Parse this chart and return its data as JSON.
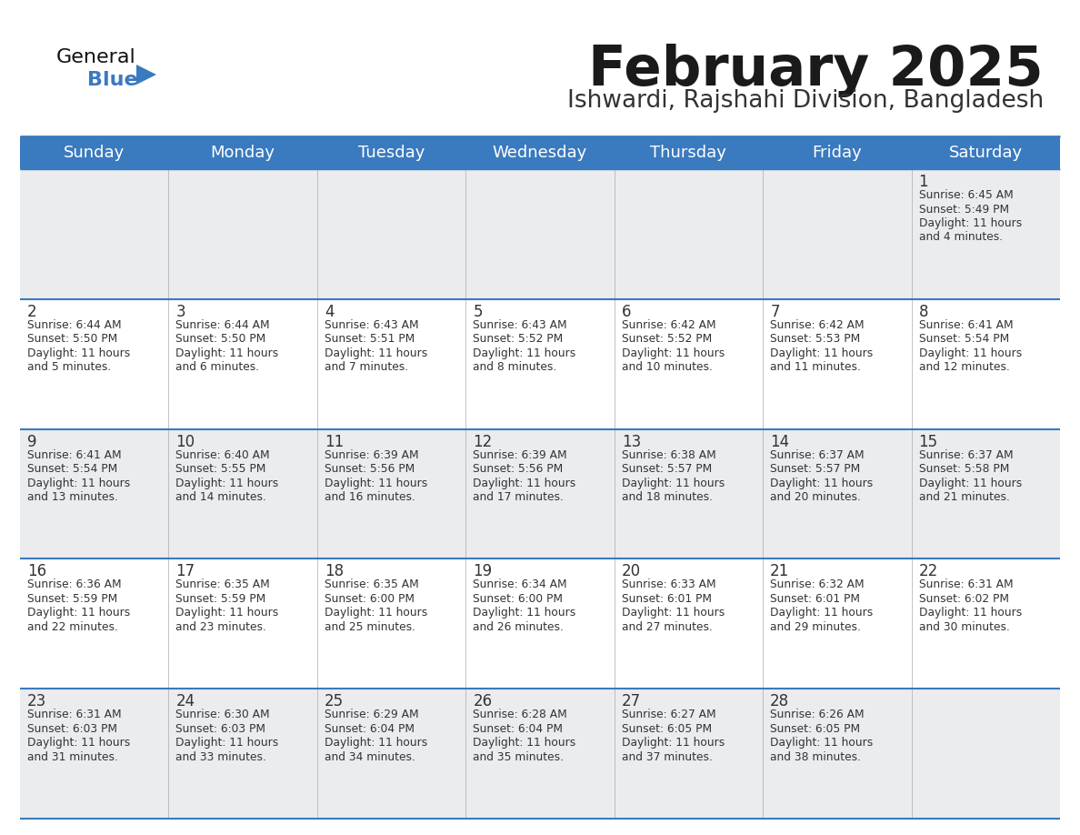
{
  "title": "February 2025",
  "subtitle": "Ishwardi, Rajshahi Division, Bangladesh",
  "header_bg_color": "#3a7abf",
  "header_text_color": "#ffffff",
  "bg_color": "#ffffff",
  "cell_bg_even": "#eaecee",
  "cell_bg_odd": "#ffffff",
  "border_color": "#3a7abf",
  "day_number_color": "#333333",
  "info_text_color": "#333333",
  "logo_general_color": "#111111",
  "logo_blue_color": "#3a7abf",
  "logo_triangle_color": "#3a7abf",
  "days_of_week": [
    "Sunday",
    "Monday",
    "Tuesday",
    "Wednesday",
    "Thursday",
    "Friday",
    "Saturday"
  ],
  "calendar_data": [
    [
      {
        "day": null
      },
      {
        "day": null
      },
      {
        "day": null
      },
      {
        "day": null
      },
      {
        "day": null
      },
      {
        "day": null
      },
      {
        "day": 1,
        "sunrise": "6:45 AM",
        "sunset": "5:49 PM",
        "d1": "Daylight: 11 hours",
        "d2": "and 4 minutes."
      }
    ],
    [
      {
        "day": 2,
        "sunrise": "6:44 AM",
        "sunset": "5:50 PM",
        "d1": "Daylight: 11 hours",
        "d2": "and 5 minutes."
      },
      {
        "day": 3,
        "sunrise": "6:44 AM",
        "sunset": "5:50 PM",
        "d1": "Daylight: 11 hours",
        "d2": "and 6 minutes."
      },
      {
        "day": 4,
        "sunrise": "6:43 AM",
        "sunset": "5:51 PM",
        "d1": "Daylight: 11 hours",
        "d2": "and 7 minutes."
      },
      {
        "day": 5,
        "sunrise": "6:43 AM",
        "sunset": "5:52 PM",
        "d1": "Daylight: 11 hours",
        "d2": "and 8 minutes."
      },
      {
        "day": 6,
        "sunrise": "6:42 AM",
        "sunset": "5:52 PM",
        "d1": "Daylight: 11 hours",
        "d2": "and 10 minutes."
      },
      {
        "day": 7,
        "sunrise": "6:42 AM",
        "sunset": "5:53 PM",
        "d1": "Daylight: 11 hours",
        "d2": "and 11 minutes."
      },
      {
        "day": 8,
        "sunrise": "6:41 AM",
        "sunset": "5:54 PM",
        "d1": "Daylight: 11 hours",
        "d2": "and 12 minutes."
      }
    ],
    [
      {
        "day": 9,
        "sunrise": "6:41 AM",
        "sunset": "5:54 PM",
        "d1": "Daylight: 11 hours",
        "d2": "and 13 minutes."
      },
      {
        "day": 10,
        "sunrise": "6:40 AM",
        "sunset": "5:55 PM",
        "d1": "Daylight: 11 hours",
        "d2": "and 14 minutes."
      },
      {
        "day": 11,
        "sunrise": "6:39 AM",
        "sunset": "5:56 PM",
        "d1": "Daylight: 11 hours",
        "d2": "and 16 minutes."
      },
      {
        "day": 12,
        "sunrise": "6:39 AM",
        "sunset": "5:56 PM",
        "d1": "Daylight: 11 hours",
        "d2": "and 17 minutes."
      },
      {
        "day": 13,
        "sunrise": "6:38 AM",
        "sunset": "5:57 PM",
        "d1": "Daylight: 11 hours",
        "d2": "and 18 minutes."
      },
      {
        "day": 14,
        "sunrise": "6:37 AM",
        "sunset": "5:57 PM",
        "d1": "Daylight: 11 hours",
        "d2": "and 20 minutes."
      },
      {
        "day": 15,
        "sunrise": "6:37 AM",
        "sunset": "5:58 PM",
        "d1": "Daylight: 11 hours",
        "d2": "and 21 minutes."
      }
    ],
    [
      {
        "day": 16,
        "sunrise": "6:36 AM",
        "sunset": "5:59 PM",
        "d1": "Daylight: 11 hours",
        "d2": "and 22 minutes."
      },
      {
        "day": 17,
        "sunrise": "6:35 AM",
        "sunset": "5:59 PM",
        "d1": "Daylight: 11 hours",
        "d2": "and 23 minutes."
      },
      {
        "day": 18,
        "sunrise": "6:35 AM",
        "sunset": "6:00 PM",
        "d1": "Daylight: 11 hours",
        "d2": "and 25 minutes."
      },
      {
        "day": 19,
        "sunrise": "6:34 AM",
        "sunset": "6:00 PM",
        "d1": "Daylight: 11 hours",
        "d2": "and 26 minutes."
      },
      {
        "day": 20,
        "sunrise": "6:33 AM",
        "sunset": "6:01 PM",
        "d1": "Daylight: 11 hours",
        "d2": "and 27 minutes."
      },
      {
        "day": 21,
        "sunrise": "6:32 AM",
        "sunset": "6:01 PM",
        "d1": "Daylight: 11 hours",
        "d2": "and 29 minutes."
      },
      {
        "day": 22,
        "sunrise": "6:31 AM",
        "sunset": "6:02 PM",
        "d1": "Daylight: 11 hours",
        "d2": "and 30 minutes."
      }
    ],
    [
      {
        "day": 23,
        "sunrise": "6:31 AM",
        "sunset": "6:03 PM",
        "d1": "Daylight: 11 hours",
        "d2": "and 31 minutes."
      },
      {
        "day": 24,
        "sunrise": "6:30 AM",
        "sunset": "6:03 PM",
        "d1": "Daylight: 11 hours",
        "d2": "and 33 minutes."
      },
      {
        "day": 25,
        "sunrise": "6:29 AM",
        "sunset": "6:04 PM",
        "d1": "Daylight: 11 hours",
        "d2": "and 34 minutes."
      },
      {
        "day": 26,
        "sunrise": "6:28 AM",
        "sunset": "6:04 PM",
        "d1": "Daylight: 11 hours",
        "d2": "and 35 minutes."
      },
      {
        "day": 27,
        "sunrise": "6:27 AM",
        "sunset": "6:05 PM",
        "d1": "Daylight: 11 hours",
        "d2": "and 37 minutes."
      },
      {
        "day": 28,
        "sunrise": "6:26 AM",
        "sunset": "6:05 PM",
        "d1": "Daylight: 11 hours",
        "d2": "and 38 minutes."
      },
      {
        "day": null
      }
    ]
  ]
}
